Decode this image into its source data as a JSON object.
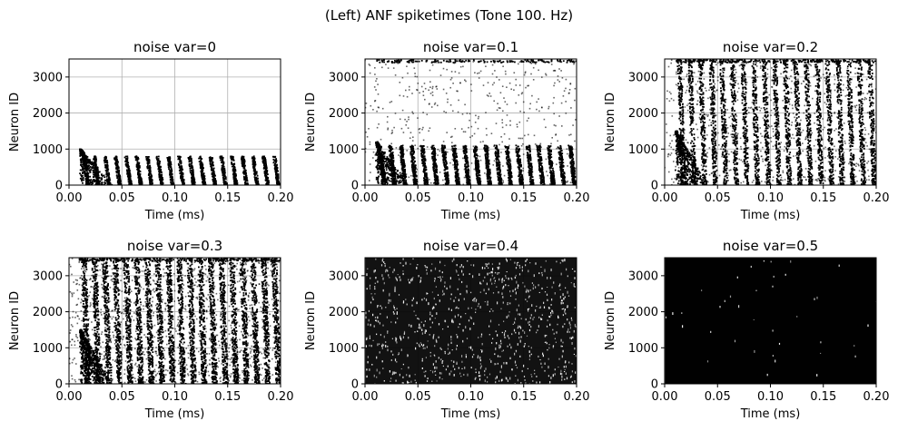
{
  "figure": {
    "suptitle": "(Left) ANF spiketimes (Tone 100. Hz)"
  },
  "chart_data": [
    {
      "type": "scatter",
      "title": "noise var=0",
      "xlabel": "Time (ms)",
      "ylabel": "Neuron ID",
      "xlim": [
        0,
        0.2
      ],
      "ylim": [
        0,
        3500
      ],
      "xticks": [
        0.0,
        0.05,
        0.1,
        0.15,
        0.2
      ],
      "xtick_labels": [
        "0.00",
        "0.05",
        "0.10",
        "0.15",
        "0.20"
      ],
      "yticks": [
        0,
        1000,
        2000,
        3000
      ],
      "ytick_labels": [
        "0",
        "1000",
        "2000",
        "3000"
      ],
      "grid": true,
      "noise_var": 0,
      "tone_hz": 100,
      "onset_ms": 0.01,
      "cycle_ms": 0.01,
      "max_id_active": 800,
      "onset_peak_id": 1000,
      "density_level": 0.15,
      "color": "#000000"
    },
    {
      "type": "scatter",
      "title": "noise var=0.1",
      "xlabel": "Time (ms)",
      "ylabel": "Neuron ID",
      "xlim": [
        0,
        0.2
      ],
      "ylim": [
        0,
        3500
      ],
      "xticks": [
        0.0,
        0.05,
        0.1,
        0.15,
        0.2
      ],
      "xtick_labels": [
        "0.00",
        "0.05",
        "0.10",
        "0.15",
        "0.20"
      ],
      "yticks": [
        0,
        1000,
        2000,
        3000
      ],
      "ytick_labels": [
        "0",
        "1000",
        "2000",
        "3000"
      ],
      "grid": true,
      "noise_var": 0.1,
      "tone_hz": 100,
      "onset_ms": 0.01,
      "cycle_ms": 0.01,
      "max_id_active": 1100,
      "onset_peak_id": 1200,
      "density_level": 0.3,
      "color": "#000000"
    },
    {
      "type": "scatter",
      "title": "noise var=0.2",
      "xlabel": "Time (ms)",
      "ylabel": "Neuron ID",
      "xlim": [
        0,
        0.2
      ],
      "ylim": [
        0,
        3500
      ],
      "xticks": [
        0.0,
        0.05,
        0.1,
        0.15,
        0.2
      ],
      "xtick_labels": [
        "0.00",
        "0.05",
        "0.10",
        "0.15",
        "0.20"
      ],
      "yticks": [
        0,
        1000,
        2000,
        3000
      ],
      "ytick_labels": [
        "0",
        "1000",
        "2000",
        "3000"
      ],
      "grid": true,
      "noise_var": 0.2,
      "tone_hz": 100,
      "onset_ms": 0.01,
      "cycle_ms": 0.01,
      "max_id_active": 3500,
      "onset_peak_id": 1500,
      "density_level": 0.5,
      "color": "#000000"
    },
    {
      "type": "scatter",
      "title": "noise var=0.3",
      "xlabel": "Time (ms)",
      "ylabel": "Neuron ID",
      "xlim": [
        0,
        0.2
      ],
      "ylim": [
        0,
        3500
      ],
      "xticks": [
        0.0,
        0.05,
        0.1,
        0.15,
        0.2
      ],
      "xtick_labels": [
        "0.00",
        "0.05",
        "0.10",
        "0.15",
        "0.20"
      ],
      "yticks": [
        0,
        1000,
        2000,
        3000
      ],
      "ytick_labels": [
        "0",
        "1000",
        "2000",
        "3000"
      ],
      "grid": true,
      "noise_var": 0.3,
      "tone_hz": 100,
      "onset_ms": 0.01,
      "cycle_ms": 0.01,
      "max_id_active": 3500,
      "onset_peak_id": 1500,
      "density_level": 0.72,
      "color": "#000000"
    },
    {
      "type": "scatter",
      "title": "noise var=0.4",
      "xlabel": "Time (ms)",
      "ylabel": "Neuron ID",
      "xlim": [
        0,
        0.2
      ],
      "ylim": [
        0,
        3500
      ],
      "xticks": [
        0.0,
        0.05,
        0.1,
        0.15,
        0.2
      ],
      "xtick_labels": [
        "0.00",
        "0.05",
        "0.10",
        "0.15",
        "0.20"
      ],
      "yticks": [
        0,
        1000,
        2000,
        3000
      ],
      "ytick_labels": [
        "0",
        "1000",
        "2000",
        "3000"
      ],
      "grid": true,
      "noise_var": 0.4,
      "tone_hz": 100,
      "onset_ms": 0.01,
      "cycle_ms": 0.01,
      "max_id_active": 3500,
      "onset_peak_id": 1500,
      "density_level": 0.93,
      "color": "#000000"
    },
    {
      "type": "scatter",
      "title": "noise var=0.5",
      "xlabel": "Time (ms)",
      "ylabel": "Neuron ID",
      "xlim": [
        0,
        0.2
      ],
      "ylim": [
        0,
        3500
      ],
      "xticks": [
        0.0,
        0.05,
        0.1,
        0.15,
        0.2
      ],
      "xtick_labels": [
        "0.00",
        "0.05",
        "0.10",
        "0.15",
        "0.20"
      ],
      "yticks": [
        0,
        1000,
        2000,
        3000
      ],
      "ytick_labels": [
        "0",
        "1000",
        "2000",
        "3000"
      ],
      "grid": true,
      "noise_var": 0.5,
      "tone_hz": 100,
      "onset_ms": 0.01,
      "cycle_ms": 0.01,
      "max_id_active": 3500,
      "onset_peak_id": 1500,
      "density_level": 0.995,
      "color": "#000000"
    }
  ]
}
